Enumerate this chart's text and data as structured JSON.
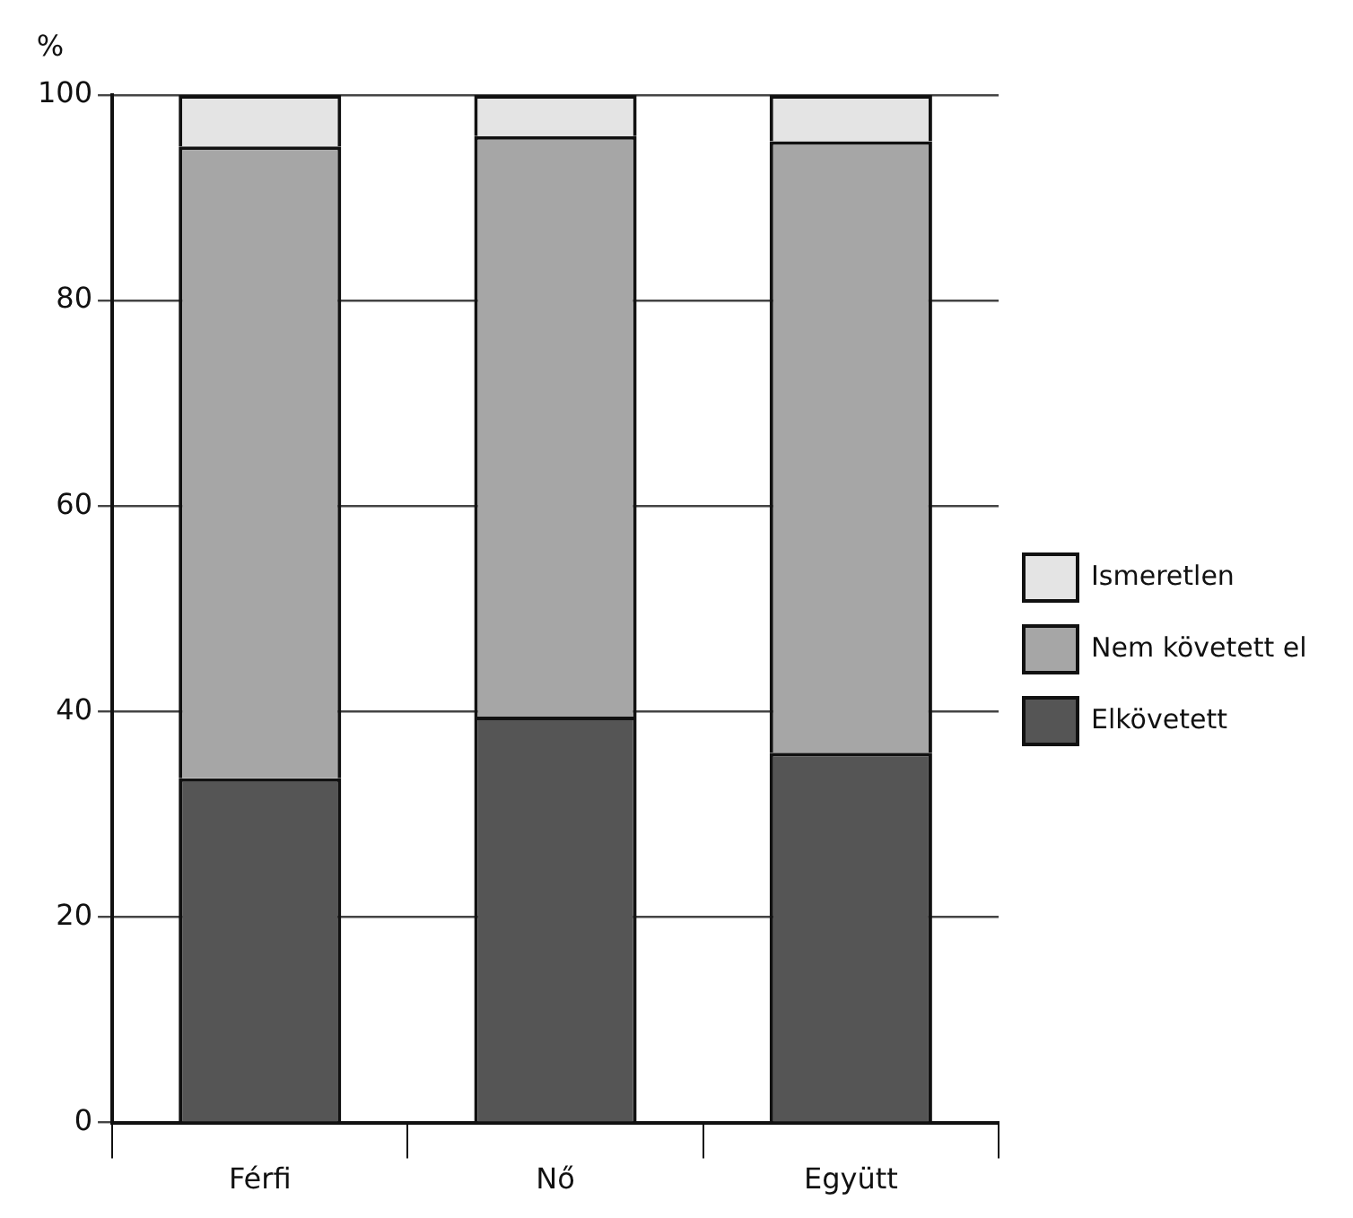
{
  "chart_data": {
    "type": "bar",
    "stacked": true,
    "ylabel": "%",
    "categories": [
      "Férfi",
      "Nő",
      "Együtt"
    ],
    "series": [
      {
        "name": "Elkövetett",
        "color": "#555555",
        "values": [
          33.5,
          39.5,
          36
        ]
      },
      {
        "name": "Nem követett el",
        "color": "#a6a6a6",
        "values": [
          61.5,
          56.5,
          59.5
        ]
      },
      {
        "name": "Ismeretlen",
        "color": "#e4e4e4",
        "values": [
          5,
          4,
          4.5
        ]
      }
    ],
    "ylim": [
      0,
      100
    ],
    "yticks": [
      0,
      20,
      40,
      60,
      80,
      100
    ],
    "grid": "y",
    "legend": "right"
  }
}
